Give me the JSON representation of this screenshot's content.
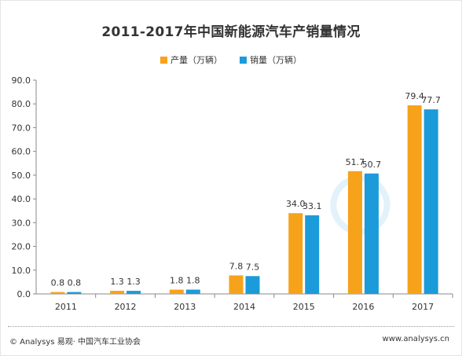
{
  "colors": {
    "production": "#f7a21b",
    "sales": "#1b9bd9",
    "axis": "#888888",
    "text": "#333333"
  },
  "footer": {
    "left": "© Analysys 易观· 中国汽车工业协会",
    "right": "www.analysys.cn"
  },
  "chart_data": {
    "type": "bar",
    "title": "2011-2017年中国新能源汽车产销量情况",
    "legend_position": "top",
    "grid": false,
    "categories": [
      "2011",
      "2012",
      "2013",
      "2014",
      "2015",
      "2016",
      "2017"
    ],
    "series": [
      {
        "name": "产量（万辆）",
        "color": "#f7a21b",
        "values": [
          0.8,
          1.3,
          1.8,
          7.8,
          34.0,
          51.7,
          79.4
        ]
      },
      {
        "name": "销量（万辆）",
        "color": "#1b9bd9",
        "values": [
          0.8,
          1.3,
          1.8,
          7.5,
          33.1,
          50.7,
          77.7
        ]
      }
    ],
    "value_labels": [
      [
        "0.8",
        "1.3",
        "1.8",
        "7.8",
        "34.0",
        "51.7",
        "79.4"
      ],
      [
        "0.8",
        "1.3",
        "1.8",
        "7.5",
        "33.1",
        "50.7",
        "77.7"
      ]
    ],
    "ylim": [
      0,
      90
    ],
    "yticks": [
      "0.0",
      "10.0",
      "20.0",
      "30.0",
      "40.0",
      "50.0",
      "60.0",
      "70.0",
      "80.0",
      "90.0"
    ]
  }
}
